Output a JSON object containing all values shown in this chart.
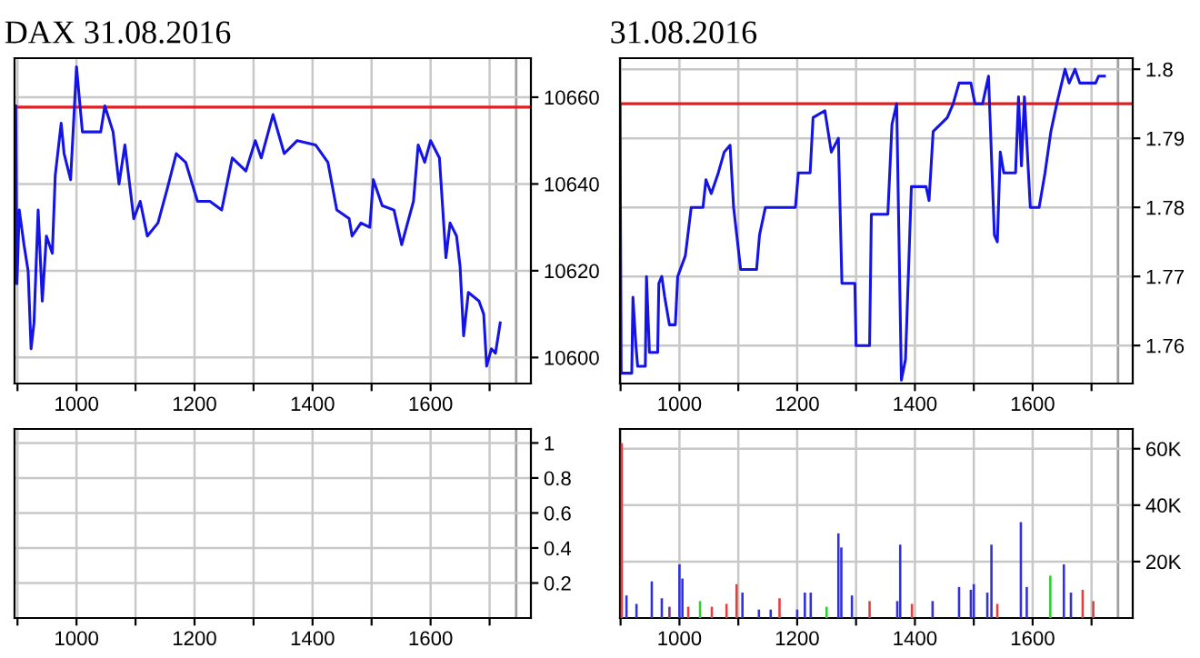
{
  "chart_data": [
    {
      "type": "line",
      "title": "DAX 31.08.2016",
      "grid": true,
      "xlim": [
        895,
        1770
      ],
      "ylim": [
        10594,
        10669
      ],
      "xticks": [
        {
          "value": 900,
          "label": null
        },
        1000,
        {
          "value": 1100,
          "label": null
        },
        1200,
        {
          "value": 1300,
          "label": null
        },
        1400,
        {
          "value": 1500,
          "label": null
        },
        1600,
        {
          "value": 1700,
          "label": null
        }
      ],
      "yticks": [
        10600,
        10620,
        10640,
        10660
      ],
      "ref_lines": [
        {
          "axis": "y",
          "value": 10657.7,
          "color": "#e02020"
        },
        {
          "axis": "x",
          "value": 1745,
          "color": "#a0a0a0"
        }
      ],
      "series": [
        {
          "color": "#1414e6",
          "x": [
            897,
            899,
            903,
            911,
            918,
            923,
            928,
            935,
            942,
            949,
            959,
            964,
            974,
            979,
            990,
            1000,
            1010,
            1021,
            1041,
            1048,
            1062,
            1072,
            1082,
            1097,
            1108,
            1120,
            1138,
            1154,
            1169,
            1185,
            1205,
            1226,
            1246,
            1264,
            1287,
            1303,
            1313,
            1333,
            1352,
            1374,
            1405,
            1426,
            1441,
            1462,
            1467,
            1482,
            1497,
            1503,
            1518,
            1538,
            1551,
            1559,
            1571,
            1579,
            1590,
            1600,
            1615,
            1626,
            1633,
            1644,
            1650,
            1656,
            1664,
            1682,
            1690,
            1695,
            1703,
            1710,
            1718
          ],
          "values": [
            10658,
            10617,
            10634,
            10626,
            10620,
            10602,
            10608,
            10634,
            10613,
            10628,
            10624,
            10642,
            10654,
            10647,
            10641,
            10667,
            10652,
            10652,
            10652,
            10658,
            10652,
            10640,
            10649,
            10632,
            10636,
            10628,
            10631,
            10639,
            10647,
            10645,
            10636,
            10636,
            10634,
            10646,
            10643,
            10650,
            10646,
            10656,
            10647,
            10650,
            10649,
            10645,
            10634,
            10632,
            10628,
            10631,
            10630,
            10641,
            10635,
            10634,
            10626,
            10630,
            10636,
            10649,
            10645,
            10650,
            10646,
            10623,
            10631,
            10628,
            10621,
            10605,
            10615,
            10613,
            10610,
            10598,
            10602,
            10601,
            10608
          ]
        }
      ]
    },
    {
      "type": "line",
      "title": "31.08.2016",
      "grid": true,
      "xlim": [
        899,
        1770
      ],
      "ylim": [
        1.7545,
        1.8016
      ],
      "xticks": [
        {
          "value": 900,
          "label": null
        },
        1000,
        {
          "value": 1100,
          "label": null
        },
        1200,
        {
          "value": 1300,
          "label": null
        },
        1400,
        {
          "value": 1500,
          "label": null
        },
        1600,
        {
          "value": 1700,
          "label": null
        }
      ],
      "yticks": [
        1.76,
        1.77,
        1.78,
        1.79,
        1.8
      ],
      "ref_lines": [
        {
          "axis": "y",
          "value": 1.795,
          "color": "#e02020"
        },
        {
          "axis": "x",
          "value": 1745,
          "color": "#a0a0a0"
        }
      ],
      "series": [
        {
          "color": "#1414e6",
          "x": [
            899,
            901,
            919,
            921,
            926,
            929,
            942,
            944,
            949,
            963,
            965,
            970,
            975,
            983,
            993,
            997,
            1010,
            1020,
            1040,
            1045,
            1054,
            1066,
            1076,
            1086,
            1092,
            1104,
            1131,
            1136,
            1146,
            1197,
            1202,
            1222,
            1227,
            1247,
            1258,
            1270,
            1276,
            1298,
            1300,
            1323,
            1326,
            1354,
            1361,
            1369,
            1377,
            1384,
            1394,
            1419,
            1424,
            1431,
            1455,
            1465,
            1475,
            1495,
            1502,
            1515,
            1525,
            1535,
            1540,
            1545,
            1551,
            1571,
            1576,
            1581,
            1586,
            1596,
            1611,
            1621,
            1631,
            1641,
            1655,
            1662,
            1672,
            1680,
            1687,
            1692,
            1707,
            1712,
            1722
          ],
          "values": [
            1.795,
            1.756,
            1.756,
            1.767,
            1.76,
            1.757,
            1.757,
            1.77,
            1.759,
            1.759,
            1.769,
            1.77,
            1.767,
            1.763,
            1.763,
            1.77,
            1.773,
            1.78,
            1.78,
            1.784,
            1.782,
            1.785,
            1.788,
            1.789,
            1.78,
            1.771,
            1.771,
            1.776,
            1.78,
            1.78,
            1.785,
            1.785,
            1.793,
            1.794,
            1.788,
            1.79,
            1.769,
            1.769,
            1.76,
            1.76,
            1.779,
            1.779,
            1.792,
            1.795,
            1.755,
            1.758,
            1.783,
            1.783,
            1.781,
            1.791,
            1.793,
            1.795,
            1.798,
            1.798,
            1.795,
            1.795,
            1.799,
            1.776,
            1.775,
            1.788,
            1.785,
            1.785,
            1.796,
            1.786,
            1.796,
            1.78,
            1.78,
            1.785,
            1.791,
            1.795,
            1.8,
            1.798,
            1.8,
            1.798,
            1.798,
            1.798,
            1.798,
            1.799,
            1.799
          ]
        }
      ]
    },
    {
      "type": "bar",
      "grid": true,
      "xlim": [
        895,
        1770
      ],
      "ylim": [
        0,
        1.08
      ],
      "xticks": [
        {
          "value": 900,
          "label": null
        },
        1000,
        {
          "value": 1100,
          "label": null
        },
        1200,
        {
          "value": 1300,
          "label": null
        },
        1400,
        {
          "value": 1500,
          "label": null
        },
        1600,
        {
          "value": 1700,
          "label": null
        }
      ],
      "yticks": [
        0.2,
        0.4,
        0.6,
        0.8,
        1
      ],
      "ref_lines": [
        {
          "axis": "x",
          "value": 1745,
          "color": "#a0a0a0"
        }
      ]
    },
    {
      "type": "bar",
      "grid": true,
      "xlim": [
        899,
        1770
      ],
      "ylim": [
        0,
        67000
      ],
      "xticks": [
        {
          "value": 900,
          "label": null
        },
        1000,
        {
          "value": 1100,
          "label": null
        },
        1200,
        {
          "value": 1300,
          "label": null
        },
        1400,
        {
          "value": 1500,
          "label": null
        },
        1600,
        {
          "value": 1700,
          "label": null
        }
      ],
      "yticks": [
        {
          "value": 20000,
          "label": "20K"
        },
        {
          "value": 40000,
          "label": "40K"
        },
        {
          "value": 60000,
          "label": "60K"
        }
      ],
      "ref_lines": [
        {
          "axis": "x",
          "value": 1745,
          "color": "#a0a0a0"
        }
      ],
      "x": [
        902,
        910,
        927,
        953,
        970,
        983,
        1000,
        1005,
        1015,
        1035,
        1055,
        1080,
        1097,
        1107,
        1135,
        1155,
        1170,
        1200,
        1213,
        1223,
        1250,
        1270,
        1275,
        1293,
        1323,
        1370,
        1375,
        1395,
        1430,
        1475,
        1495,
        1500,
        1523,
        1530,
        1540,
        1580,
        1590,
        1630,
        1653,
        1665,
        1685,
        1703
      ],
      "values": [
        62000,
        8000,
        5000,
        13000,
        7000,
        4000,
        19000,
        14000,
        4000,
        6000,
        4000,
        5000,
        12000,
        9000,
        3000,
        3000,
        7000,
        3000,
        9000,
        9000,
        4000,
        30000,
        25000,
        8000,
        6000,
        6000,
        26000,
        5000,
        6000,
        11000,
        10000,
        12000,
        9000,
        26000,
        5000,
        34000,
        11000,
        15000,
        19000,
        9000,
        10000,
        6000
      ],
      "colors": [
        "#e04040",
        "#3030dd",
        "#3030dd",
        "#3030dd",
        "#3030dd",
        "#8030a0",
        "#3030dd",
        "#3030dd",
        "#e04040",
        "#30d030",
        "#e04040",
        "#e04040",
        "#e04040",
        "#3030dd",
        "#3030dd",
        "#3030dd",
        "#e04040",
        "#3030dd",
        "#3030dd",
        "#3030dd",
        "#30d030",
        "#3030dd",
        "#3030dd",
        "#3030dd",
        "#e04040",
        "#3030dd",
        "#3030dd",
        "#e04040",
        "#3030dd",
        "#3030dd",
        "#3030dd",
        "#3030dd",
        "#3030dd",
        "#3030dd",
        "#e04040",
        "#3030dd",
        "#3030dd",
        "#30d030",
        "#3030dd",
        "#3030dd",
        "#e04040",
        "#e04040"
      ]
    }
  ]
}
